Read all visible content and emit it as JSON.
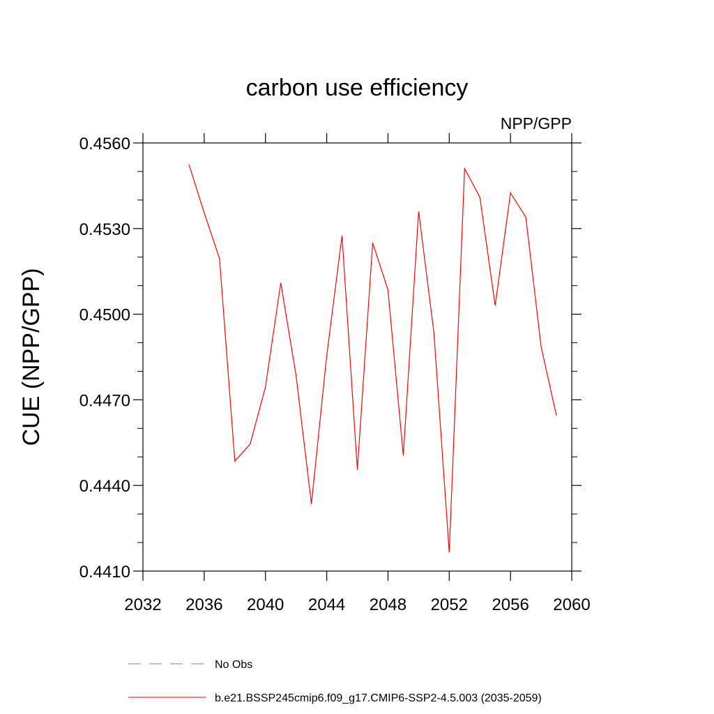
{
  "chart_data": {
    "type": "line",
    "title": "carbon use efficiency",
    "subtitle": "NPP/GPP",
    "xlabel": "",
    "ylabel": "CUE  (NPP/GPP)",
    "xlim": [
      2032,
      2060
    ],
    "ylim": [
      0.441,
      0.456
    ],
    "x_ticks": [
      2032,
      2036,
      2040,
      2044,
      2048,
      2052,
      2056,
      2060
    ],
    "x_tick_labels": [
      "2032",
      "2036",
      "2040",
      "2044",
      "2048",
      "2052",
      "2056",
      "2060"
    ],
    "y_ticks": [
      0.441,
      0.444,
      0.447,
      0.45,
      0.453,
      0.456
    ],
    "y_tick_labels": [
      "0.4410",
      "0.4440",
      "0.4470",
      "0.4500",
      "0.4530",
      "0.4560"
    ],
    "grid": false,
    "legend_position": "bottom",
    "series": [
      {
        "name": "b.e21.BSSP245cmip6.f09_g17.CMIP6-SSP2-4.5.003 (2035-2059)",
        "color": "#ff0000",
        "style": "solid",
        "x": [
          2035,
          2036,
          2037,
          2038,
          2039,
          2040,
          2041,
          2042,
          2043,
          2044,
          2045,
          2046,
          2047,
          2048,
          2049,
          2050,
          2051,
          2052,
          2053,
          2054,
          2055,
          2056,
          2057,
          2058,
          2059
        ],
        "y": [
          0.45525,
          0.45355,
          0.45195,
          0.44485,
          0.44545,
          0.44745,
          0.4511,
          0.44785,
          0.44335,
          0.44855,
          0.45275,
          0.44455,
          0.4525,
          0.45085,
          0.44505,
          0.4536,
          0.44935,
          0.44165,
          0.4551,
          0.4541,
          0.4503,
          0.45425,
          0.4534,
          0.44885,
          0.44645
        ]
      }
    ],
    "legend": [
      {
        "label": "No Obs",
        "color": "#7b7bc6",
        "style": "dashed"
      },
      {
        "label": "b.e21.BSSP245cmip6.f09_g17.CMIP6-SSP2-4.5.003 (2035-2059)",
        "color": "#ff0000",
        "style": "solid"
      }
    ]
  }
}
